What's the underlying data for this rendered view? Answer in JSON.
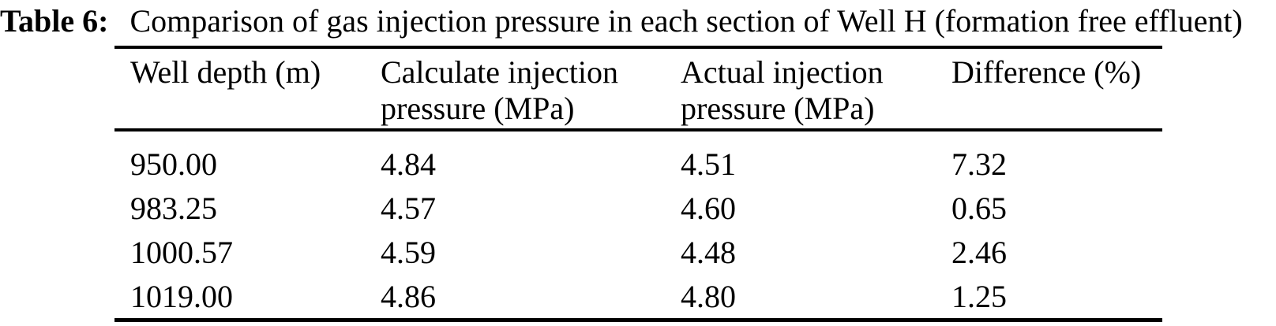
{
  "caption": {
    "label": "Table 6:",
    "text": "Comparison of gas injection pressure in each section of Well H (formation free effluent)"
  },
  "colors": {
    "background": "#ffffff",
    "text": "#000000",
    "rule": "#000000"
  },
  "chart_data": {
    "type": "table",
    "title": "Table 6: Comparison of gas injection pressure in each section of Well H (formation free effluent)",
    "columns": [
      "Well depth (m)",
      "Calculate injection pressure (MPa)",
      "Actual injection pressure (MPa)",
      "Difference (%)"
    ],
    "rows": [
      [
        "950.00",
        "4.84",
        "4.51",
        "7.32"
      ],
      [
        "983.25",
        "4.57",
        "4.60",
        "0.65"
      ],
      [
        "1000.57",
        "4.59",
        "4.48",
        "2.46"
      ],
      [
        "1019.00",
        "4.86",
        "4.80",
        "1.25"
      ]
    ]
  }
}
